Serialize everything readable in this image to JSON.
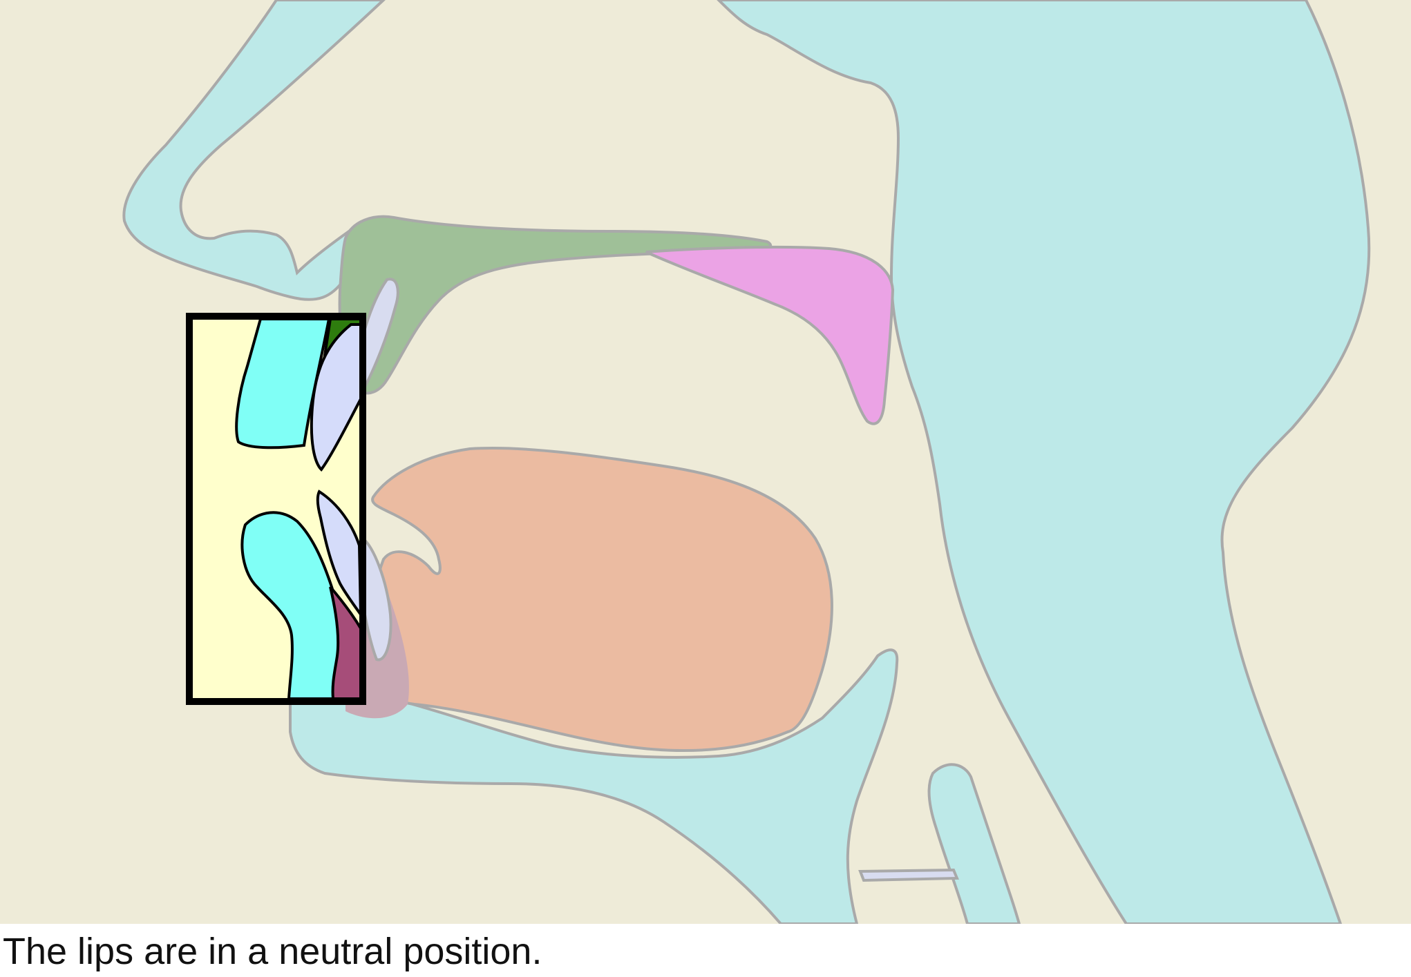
{
  "caption": "The lips are in a neutral position.",
  "colors": {
    "background": "#eeebd8",
    "nasal_cavity_and_pharynx": "#bde9e8",
    "outline": "#a9a9a9",
    "hard_palate": "#9fc098",
    "soft_palate": "#eba3e5",
    "tongue": "#ebbba1",
    "teeth": "#d8dcf0",
    "inset_background": "#ffffcc",
    "inset_lips": "#80fff6",
    "inset_teeth": "#d5dcfa",
    "inset_alveolar_ridge": "#2e7d0e",
    "inset_tongue_tip": "#a64d79",
    "inset_frame": "#000000"
  }
}
